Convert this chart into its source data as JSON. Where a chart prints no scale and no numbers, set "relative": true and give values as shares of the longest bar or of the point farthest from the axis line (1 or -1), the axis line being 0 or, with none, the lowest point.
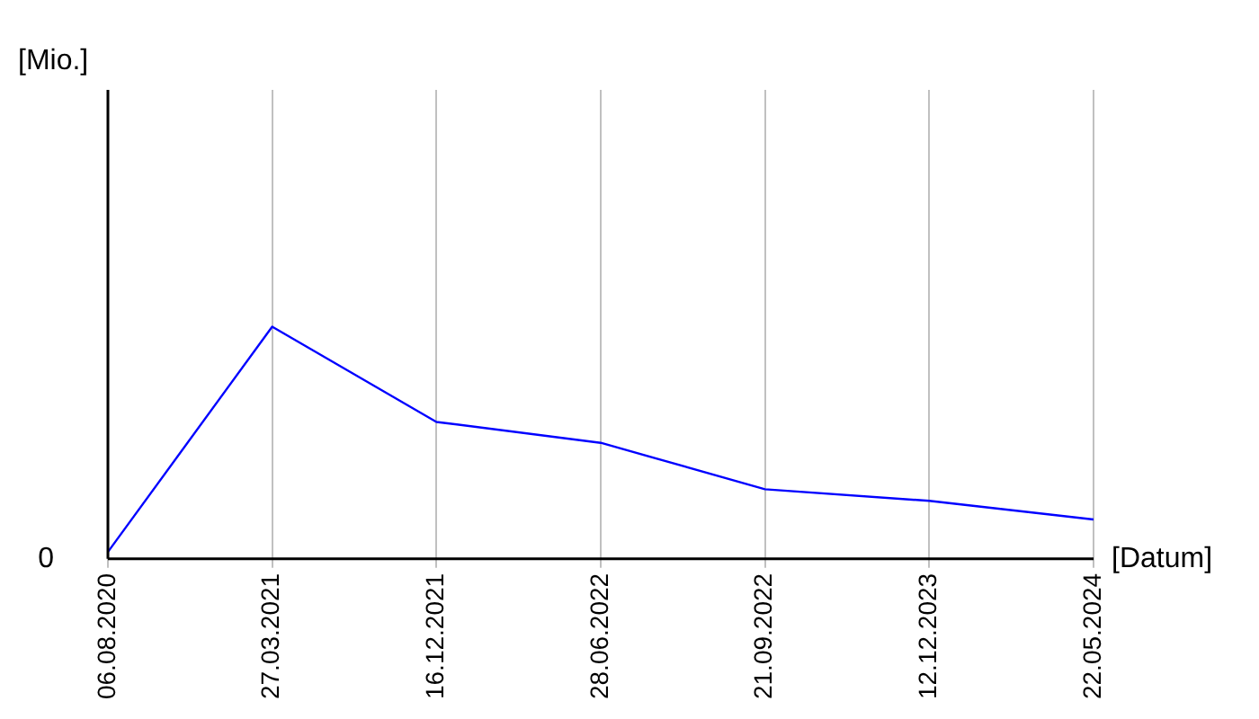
{
  "chart_data": {
    "type": "line",
    "relative": true,
    "xlabel": "[Datum]",
    "annotations": [
      "[Mio.]",
      "0"
    ],
    "categories": [
      "06.08.2020",
      "27.03.2021",
      "16.12.2021",
      "28.06.2022",
      "21.09.2022",
      "12.12.2023",
      "22.05.2024"
    ],
    "series": [
      {
        "color": "#0000ff",
        "values": [
          0.03,
          1,
          0.59,
          0.5,
          0.3,
          0.25,
          0.17
        ]
      }
    ],
    "grid": "x",
    "legend": false,
    "marker": "none",
    "line_style": "solid"
  }
}
